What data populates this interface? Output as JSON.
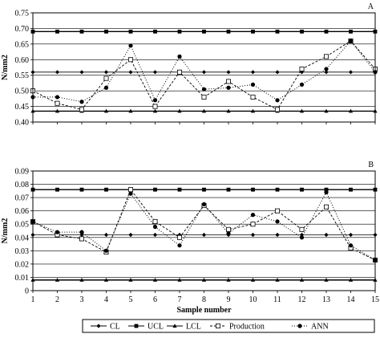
{
  "chart_data": [
    {
      "type": "line",
      "panel_label": "A",
      "ylabel": "N/mm2",
      "ylim": [
        0.4,
        0.75
      ],
      "yticks": [
        "0.40",
        "0.45",
        "0.50",
        "0.55",
        "0.60",
        "0.65",
        "0.70",
        "0.75"
      ],
      "x": [
        1,
        2,
        3,
        4,
        5,
        6,
        7,
        8,
        9,
        10,
        11,
        12,
        13,
        14,
        15
      ],
      "grid": "horizontal",
      "series": [
        {
          "name": "CL",
          "marker": "diamond",
          "values": [
            0.56,
            0.56,
            0.56,
            0.56,
            0.56,
            0.56,
            0.56,
            0.56,
            0.56,
            0.56,
            0.56,
            0.56,
            0.56,
            0.56,
            0.56
          ]
        },
        {
          "name": "UCL",
          "marker": "square",
          "values": [
            0.69,
            0.69,
            0.69,
            0.69,
            0.69,
            0.69,
            0.69,
            0.69,
            0.69,
            0.69,
            0.69,
            0.69,
            0.69,
            0.69,
            0.69
          ]
        },
        {
          "name": "LCL",
          "marker": "triangle",
          "values": [
            0.435,
            0.435,
            0.435,
            0.435,
            0.435,
            0.435,
            0.435,
            0.435,
            0.435,
            0.435,
            0.435,
            0.435,
            0.435,
            0.435,
            0.435
          ]
        },
        {
          "name": "Production",
          "marker": "open-square",
          "values": [
            0.5,
            0.46,
            0.44,
            0.54,
            0.6,
            0.45,
            0.56,
            0.48,
            0.53,
            0.48,
            0.44,
            0.57,
            0.61,
            0.66,
            0.57
          ]
        },
        {
          "name": "ANN",
          "marker": "circle",
          "values": [
            0.48,
            0.48,
            0.465,
            0.51,
            0.645,
            0.47,
            0.61,
            0.505,
            0.51,
            0.52,
            0.47,
            0.52,
            0.57,
            0.66,
            0.56
          ]
        }
      ]
    },
    {
      "type": "line",
      "panel_label": "B",
      "ylabel": "N/mm2",
      "xlabel": "Sample number",
      "ylim": [
        0,
        0.09
      ],
      "yticks": [
        "0",
        "0.01",
        "0.02",
        "0.03",
        "0.04",
        "0.05",
        "0.06",
        "0.07",
        "0.08",
        "0.09"
      ],
      "x": [
        1,
        2,
        3,
        4,
        5,
        6,
        7,
        8,
        9,
        10,
        11,
        12,
        13,
        14,
        15
      ],
      "xticks": [
        "1",
        "2",
        "3",
        "4",
        "5",
        "6",
        "7",
        "8",
        "9",
        "10",
        "11",
        "12",
        "13",
        "14",
        "15"
      ],
      "grid": "horizontal",
      "series": [
        {
          "name": "CL",
          "marker": "diamond",
          "values": [
            0.042,
            0.042,
            0.042,
            0.042,
            0.042,
            0.042,
            0.042,
            0.042,
            0.042,
            0.042,
            0.042,
            0.042,
            0.042,
            0.042,
            0.042
          ]
        },
        {
          "name": "UCL",
          "marker": "square",
          "values": [
            0.076,
            0.076,
            0.076,
            0.076,
            0.076,
            0.076,
            0.076,
            0.076,
            0.076,
            0.076,
            0.076,
            0.076,
            0.076,
            0.076,
            0.076
          ]
        },
        {
          "name": "LCL",
          "marker": "triangle",
          "values": [
            0.008,
            0.008,
            0.008,
            0.008,
            0.008,
            0.008,
            0.008,
            0.008,
            0.008,
            0.008,
            0.008,
            0.008,
            0.008,
            0.008,
            0.008
          ]
        },
        {
          "name": "Production",
          "marker": "open-square",
          "values": [
            0.052,
            0.042,
            0.039,
            0.029,
            0.076,
            0.052,
            0.04,
            0.064,
            0.046,
            0.05,
            0.06,
            0.046,
            0.063,
            0.032,
            0.023
          ]
        },
        {
          "name": "ANN",
          "marker": "circle",
          "values": [
            0.052,
            0.044,
            0.044,
            0.03,
            0.073,
            0.048,
            0.034,
            0.065,
            0.043,
            0.057,
            0.052,
            0.04,
            0.074,
            0.034,
            0.023
          ]
        }
      ]
    }
  ],
  "legend": {
    "placement": "bottom",
    "items": [
      {
        "label": "CL",
        "marker": "diamond",
        "dash": "solid"
      },
      {
        "label": "UCL",
        "marker": "square",
        "dash": "solid"
      },
      {
        "label": "LCL",
        "marker": "triangle",
        "dash": "solid"
      },
      {
        "label": "Production",
        "marker": "open-square",
        "dash": "dashed"
      },
      {
        "label": "ANN",
        "marker": "circle",
        "dash": "dotted"
      }
    ]
  }
}
